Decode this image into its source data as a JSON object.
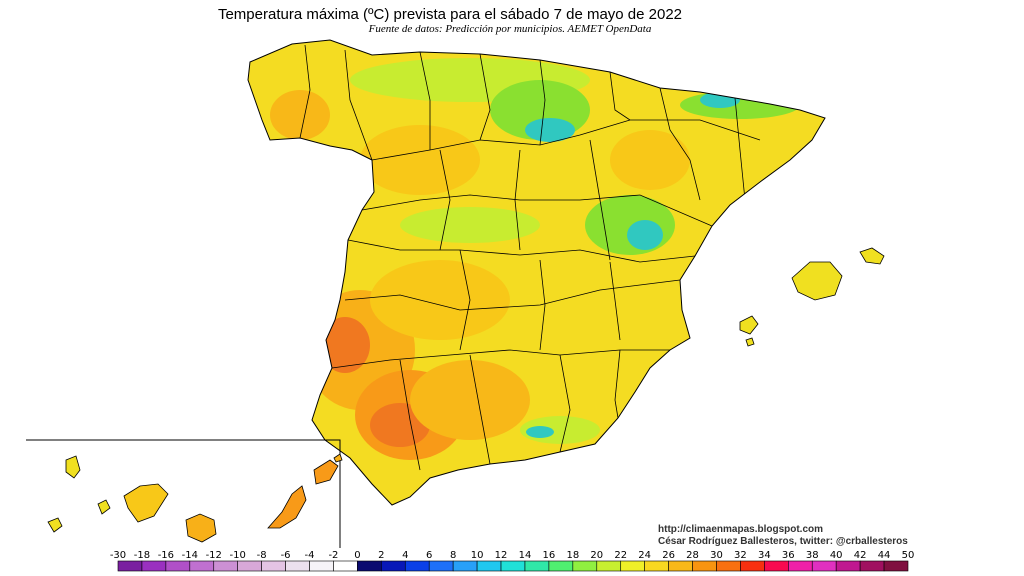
{
  "title": "Temperatura máxima (ºC) prevista para el sábado 7 de mayo de 2022",
  "subtitle": "Fuente de datos: Predicción por municipios. AEMET OpenData",
  "credits": {
    "url": "http://climaenmapas.blogspot.com",
    "author": "César Rodríguez Ballesteros, twitter: @crballesteros"
  },
  "legend": {
    "labels": [
      "-30",
      "-18",
      "-16",
      "-14",
      "-12",
      "-10",
      "-8",
      "-6",
      "-4",
      "-2",
      "0",
      "2",
      "4",
      "6",
      "8",
      "10",
      "12",
      "14",
      "16",
      "18",
      "20",
      "22",
      "24",
      "26",
      "28",
      "30",
      "32",
      "34",
      "36",
      "38",
      "40",
      "42",
      "44",
      "50"
    ],
    "colors": [
      "#7a1fa0",
      "#9a30c0",
      "#b050c8",
      "#c070d0",
      "#cc90d4",
      "#d8a8d8",
      "#e4c4e4",
      "#ece0ee",
      "#f6f4f8",
      "#ffffff",
      "#0a0a70",
      "#0818b8",
      "#0a40e8",
      "#1e70f8",
      "#28a0f8",
      "#20c8f0",
      "#20e0d8",
      "#30e8a8",
      "#50f070",
      "#90f040",
      "#c8f030",
      "#f0f028",
      "#f8d820",
      "#f8b818",
      "#f89410",
      "#f87010",
      "#f83010",
      "#f80a50",
      "#f020a8",
      "#e030c0",
      "#c01890",
      "#a01060",
      "#801040"
    ],
    "number_color_labels": [
      "16"
    ]
  },
  "map": {
    "region": "Spain peninsula, Balearic Islands and Canary Islands inset",
    "palette": {
      "cool": "#30c8c0",
      "green": "#8ae030",
      "lime": "#c8ec30",
      "yellow": "#f0e020",
      "gold": "#f8c818",
      "orange": "#f89a18",
      "hot": "#f07820",
      "border": "#000000"
    }
  }
}
